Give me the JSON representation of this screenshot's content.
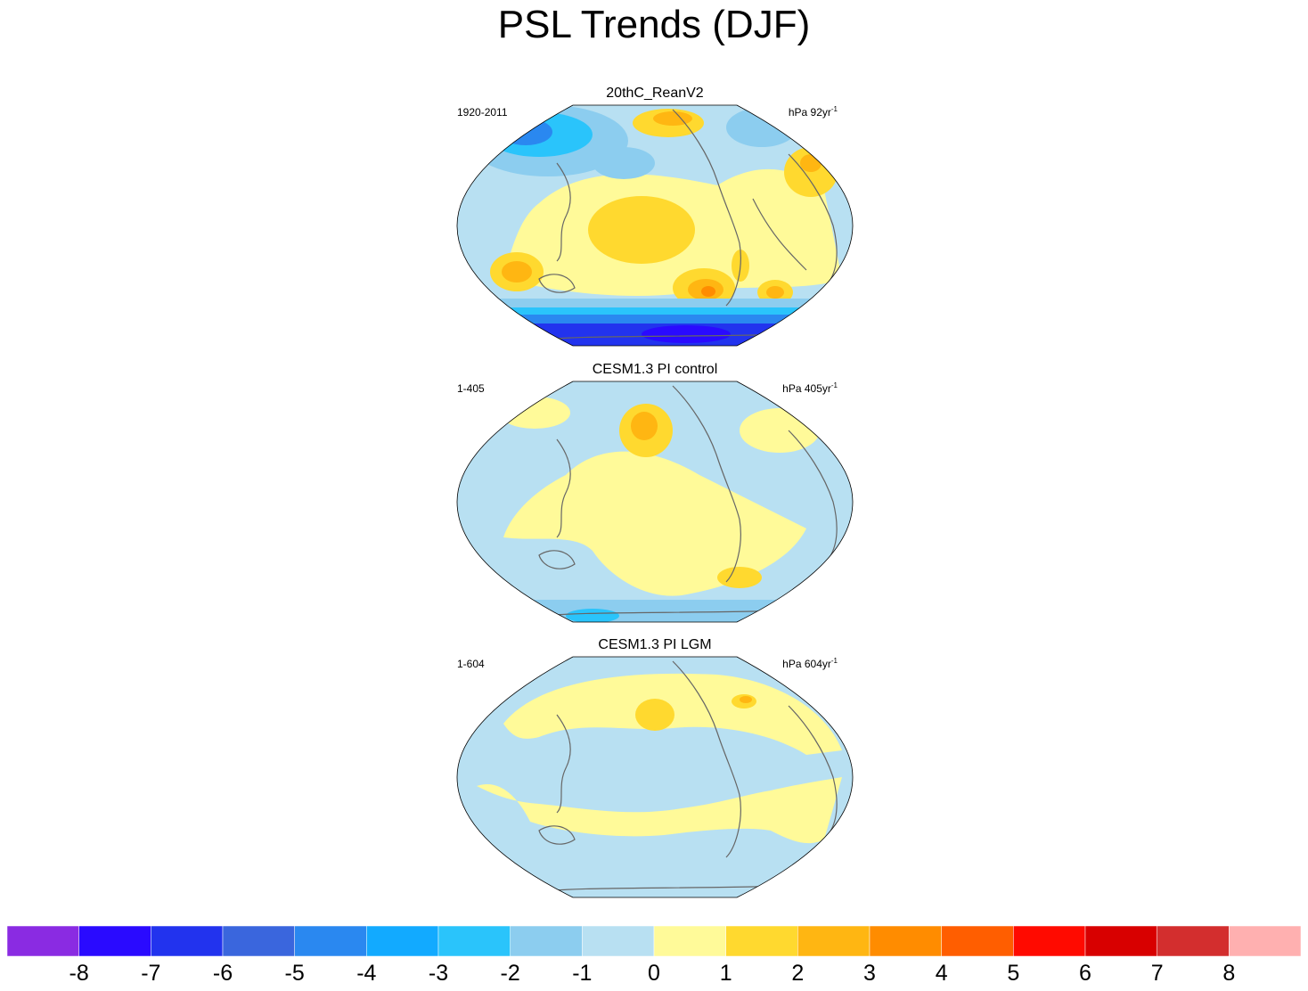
{
  "title": "PSL Trends (DJF)",
  "panels": [
    {
      "title": "20thC_ReanV2",
      "period": "1920-2011",
      "units_prefix": "hPa 92yr",
      "units_exp": "-1"
    },
    {
      "title": "CESM1.3 PI control",
      "period": "1-405",
      "units_prefix": "hPa 405yr",
      "units_exp": "-1"
    },
    {
      "title": "CESM1.3 PI LGM",
      "period": "1-604",
      "units_prefix": "hPa 604yr",
      "units_exp": "-1"
    }
  ],
  "colorbar": {
    "colors": [
      "#8a2be2",
      "#2a0aff",
      "#2233ee",
      "#3a66dd",
      "#2a88f0",
      "#12aaff",
      "#2ac4fb",
      "#8ccdef",
      "#b8e0f2",
      "#fffa99",
      "#ffd92f",
      "#ffb612",
      "#ff8c00",
      "#ff5e00",
      "#ff0a00",
      "#d80000",
      "#d32e2e",
      "#ffb0b0"
    ],
    "labels": [
      "-8",
      "-7",
      "-6",
      "-5",
      "-4",
      "-3",
      "-2",
      "-1",
      "0",
      "1",
      "2",
      "3",
      "4",
      "5",
      "6",
      "7",
      "8"
    ]
  },
  "map_colors": {
    "neg1": "#b8e0f2",
    "neg2": "#8ccdef",
    "neg3": "#2ac4fb",
    "neg4": "#12aaff",
    "neg5": "#2a88f0",
    "neg6": "#3a66dd",
    "neg7": "#2233ee",
    "pos1": "#fffa99",
    "pos2": "#ffd92f",
    "pos3": "#ffb612",
    "pos4": "#ff8c00",
    "coast": "#666666"
  }
}
